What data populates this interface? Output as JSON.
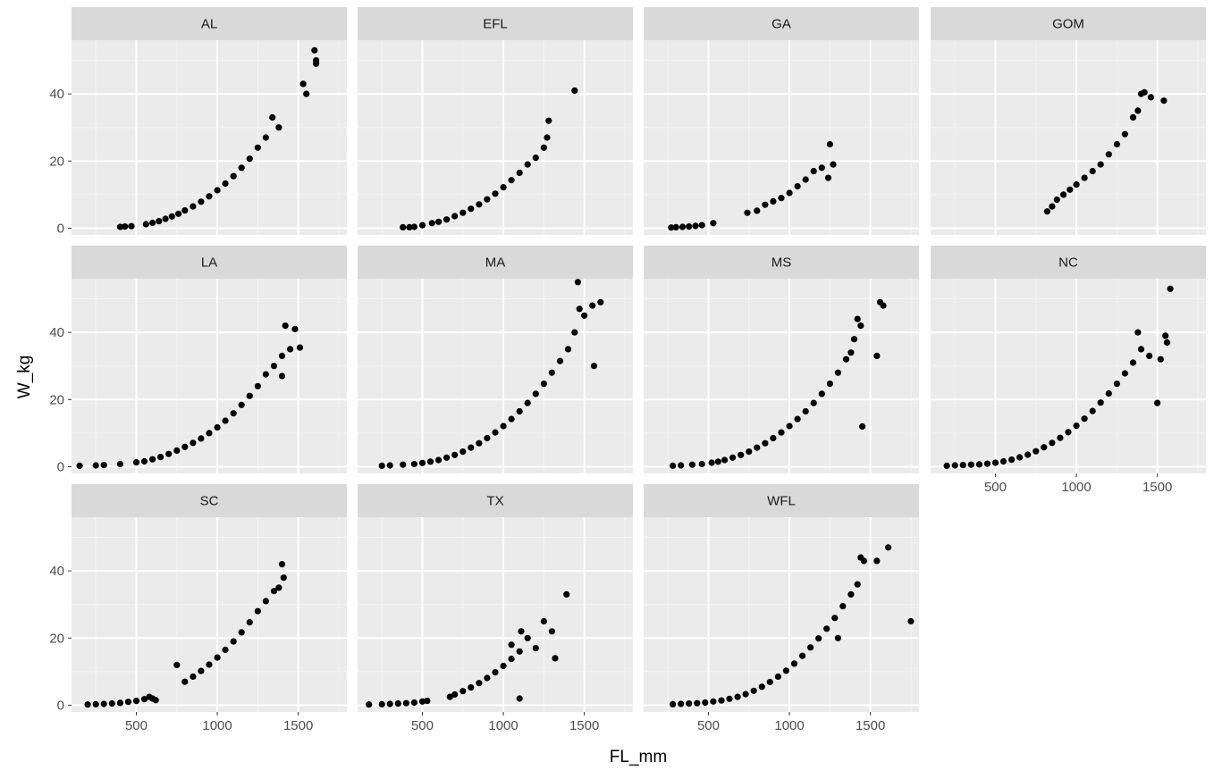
{
  "chart_data": {
    "type": "scatter",
    "facet_type": "facet_wrap",
    "xlabel": "FL_mm",
    "ylabel": "W_kg",
    "xlim": [
      100,
      1800
    ],
    "ylim": [
      -2,
      56
    ],
    "x_ticks": [
      500,
      1000,
      1500
    ],
    "y_ticks": [
      0,
      20,
      40
    ],
    "grid": true,
    "colors": {
      "panel_bg": "#ebebeb",
      "strip_bg": "#d9d9d9",
      "grid_major": "#ffffff",
      "grid_minor": "#f5f5f5",
      "point": "#000000"
    },
    "panels": [
      {
        "name": "AL",
        "points": [
          [
            400,
            0.4
          ],
          [
            430,
            0.5
          ],
          [
            470,
            0.6
          ],
          [
            560,
            1.2
          ],
          [
            600,
            1.6
          ],
          [
            640,
            2.1
          ],
          [
            680,
            2.8
          ],
          [
            720,
            3.5
          ],
          [
            760,
            4.3
          ],
          [
            800,
            5.3
          ],
          [
            850,
            6.5
          ],
          [
            900,
            7.9
          ],
          [
            950,
            9.5
          ],
          [
            1000,
            11.3
          ],
          [
            1050,
            13.3
          ],
          [
            1100,
            15.5
          ],
          [
            1150,
            18.0
          ],
          [
            1200,
            20.7
          ],
          [
            1250,
            24.0
          ],
          [
            1300,
            27.0
          ],
          [
            1340,
            33.0
          ],
          [
            1380,
            30.0
          ],
          [
            1530,
            43.0
          ],
          [
            1550,
            40.0
          ],
          [
            1600,
            53.0
          ],
          [
            1610,
            50.0
          ],
          [
            1610,
            49.0
          ]
        ]
      },
      {
        "name": "EFL",
        "points": [
          [
            380,
            0.3
          ],
          [
            420,
            0.3
          ],
          [
            450,
            0.4
          ],
          [
            500,
            0.9
          ],
          [
            560,
            1.5
          ],
          [
            600,
            1.9
          ],
          [
            650,
            2.6
          ],
          [
            700,
            3.6
          ],
          [
            750,
            4.6
          ],
          [
            800,
            5.8
          ],
          [
            850,
            7.1
          ],
          [
            900,
            8.6
          ],
          [
            950,
            10.3
          ],
          [
            1000,
            12.2
          ],
          [
            1050,
            14.3
          ],
          [
            1100,
            16.5
          ],
          [
            1150,
            19.0
          ],
          [
            1200,
            21.0
          ],
          [
            1250,
            24.0
          ],
          [
            1270,
            27.0
          ],
          [
            1280,
            32.0
          ],
          [
            1440,
            41.0
          ]
        ]
      },
      {
        "name": "GA",
        "points": [
          [
            270,
            0.2
          ],
          [
            300,
            0.3
          ],
          [
            340,
            0.4
          ],
          [
            380,
            0.5
          ],
          [
            420,
            0.7
          ],
          [
            460,
            0.9
          ],
          [
            530,
            1.5
          ],
          [
            740,
            4.6
          ],
          [
            800,
            5.2
          ],
          [
            850,
            7.0
          ],
          [
            900,
            8.0
          ],
          [
            950,
            9.0
          ],
          [
            1000,
            10.5
          ],
          [
            1050,
            12.5
          ],
          [
            1100,
            14.5
          ],
          [
            1150,
            17.0
          ],
          [
            1200,
            18.0
          ],
          [
            1240,
            15.0
          ],
          [
            1250,
            25.0
          ],
          [
            1270,
            19.0
          ]
        ]
      },
      {
        "name": "GOM",
        "points": [
          [
            820,
            5.0
          ],
          [
            850,
            6.5
          ],
          [
            880,
            8.5
          ],
          [
            920,
            10.0
          ],
          [
            960,
            11.5
          ],
          [
            1000,
            13.0
          ],
          [
            1050,
            15.0
          ],
          [
            1100,
            17.0
          ],
          [
            1150,
            19.0
          ],
          [
            1200,
            22.0
          ],
          [
            1250,
            25.0
          ],
          [
            1300,
            28.0
          ],
          [
            1350,
            33.0
          ],
          [
            1380,
            35.0
          ],
          [
            1400,
            40.0
          ],
          [
            1420,
            40.5
          ],
          [
            1460,
            39.0
          ],
          [
            1540,
            38.0
          ]
        ]
      },
      {
        "name": "LA",
        "points": [
          [
            150,
            0.3
          ],
          [
            250,
            0.4
          ],
          [
            300,
            0.5
          ],
          [
            400,
            0.8
          ],
          [
            500,
            1.3
          ],
          [
            550,
            1.6
          ],
          [
            600,
            2.2
          ],
          [
            650,
            2.9
          ],
          [
            700,
            3.8
          ],
          [
            750,
            4.8
          ],
          [
            800,
            5.9
          ],
          [
            850,
            7.1
          ],
          [
            900,
            8.4
          ],
          [
            950,
            10.0
          ],
          [
            1000,
            11.7
          ],
          [
            1050,
            13.7
          ],
          [
            1100,
            15.9
          ],
          [
            1150,
            18.4
          ],
          [
            1200,
            21.1
          ],
          [
            1250,
            24.0
          ],
          [
            1300,
            27.5
          ],
          [
            1350,
            30.0
          ],
          [
            1400,
            33.0
          ],
          [
            1420,
            42.0
          ],
          [
            1450,
            35.0
          ],
          [
            1480,
            41.0
          ],
          [
            1510,
            35.5
          ],
          [
            1400,
            27.0
          ]
        ]
      },
      {
        "name": "MA",
        "points": [
          [
            250,
            0.3
          ],
          [
            300,
            0.4
          ],
          [
            380,
            0.6
          ],
          [
            450,
            0.8
          ],
          [
            500,
            1.1
          ],
          [
            550,
            1.5
          ],
          [
            600,
            2.0
          ],
          [
            650,
            2.7
          ],
          [
            700,
            3.5
          ],
          [
            750,
            4.5
          ],
          [
            800,
            5.7
          ],
          [
            850,
            7.0
          ],
          [
            900,
            8.5
          ],
          [
            950,
            10.2
          ],
          [
            1000,
            12.1
          ],
          [
            1050,
            14.2
          ],
          [
            1100,
            16.5
          ],
          [
            1150,
            19.0
          ],
          [
            1200,
            21.7
          ],
          [
            1250,
            24.7
          ],
          [
            1300,
            28.0
          ],
          [
            1350,
            31.5
          ],
          [
            1400,
            35.0
          ],
          [
            1440,
            40.0
          ],
          [
            1460,
            55.0
          ],
          [
            1500,
            45.0
          ],
          [
            1550,
            48.0
          ],
          [
            1600,
            49.0
          ],
          [
            1560,
            30.0
          ],
          [
            1470,
            47.0
          ]
        ]
      },
      {
        "name": "MS",
        "points": [
          [
            280,
            0.3
          ],
          [
            330,
            0.4
          ],
          [
            400,
            0.6
          ],
          [
            460,
            0.8
          ],
          [
            520,
            1.2
          ],
          [
            560,
            1.5
          ],
          [
            600,
            2.0
          ],
          [
            650,
            2.7
          ],
          [
            700,
            3.5
          ],
          [
            750,
            4.5
          ],
          [
            800,
            5.7
          ],
          [
            850,
            7.0
          ],
          [
            900,
            8.5
          ],
          [
            950,
            10.2
          ],
          [
            1000,
            12.1
          ],
          [
            1050,
            14.2
          ],
          [
            1100,
            16.5
          ],
          [
            1150,
            19.0
          ],
          [
            1200,
            21.7
          ],
          [
            1250,
            24.7
          ],
          [
            1300,
            28.0
          ],
          [
            1350,
            32.0
          ],
          [
            1380,
            34.0
          ],
          [
            1400,
            38.0
          ],
          [
            1420,
            44.0
          ],
          [
            1440,
            42.0
          ],
          [
            1450,
            12.0
          ],
          [
            1540,
            33.0
          ],
          [
            1560,
            49.0
          ],
          [
            1580,
            48.0
          ]
        ]
      },
      {
        "name": "NC",
        "points": [
          [
            200,
            0.3
          ],
          [
            250,
            0.4
          ],
          [
            300,
            0.5
          ],
          [
            350,
            0.6
          ],
          [
            400,
            0.7
          ],
          [
            450,
            0.9
          ],
          [
            500,
            1.2
          ],
          [
            550,
            1.6
          ],
          [
            600,
            2.1
          ],
          [
            650,
            2.8
          ],
          [
            700,
            3.6
          ],
          [
            750,
            4.6
          ],
          [
            800,
            5.8
          ],
          [
            850,
            7.1
          ],
          [
            900,
            8.6
          ],
          [
            950,
            10.3
          ],
          [
            1000,
            12.2
          ],
          [
            1050,
            14.3
          ],
          [
            1100,
            16.6
          ],
          [
            1150,
            19.1
          ],
          [
            1200,
            21.8
          ],
          [
            1250,
            24.7
          ],
          [
            1300,
            27.8
          ],
          [
            1350,
            31.0
          ],
          [
            1380,
            40.0
          ],
          [
            1400,
            35.0
          ],
          [
            1450,
            33.0
          ],
          [
            1500,
            19.0
          ],
          [
            1520,
            32.0
          ],
          [
            1550,
            39.0
          ],
          [
            1560,
            37.0
          ],
          [
            1580,
            53.0
          ]
        ]
      },
      {
        "name": "SC",
        "points": [
          [
            200,
            0.2
          ],
          [
            250,
            0.3
          ],
          [
            300,
            0.4
          ],
          [
            350,
            0.5
          ],
          [
            400,
            0.7
          ],
          [
            450,
            1.0
          ],
          [
            500,
            1.3
          ],
          [
            550,
            1.8
          ],
          [
            580,
            2.5
          ],
          [
            600,
            2.0
          ],
          [
            620,
            1.5
          ],
          [
            750,
            12.0
          ],
          [
            800,
            7.0
          ],
          [
            850,
            8.5
          ],
          [
            900,
            10.2
          ],
          [
            950,
            12.1
          ],
          [
            1000,
            14.2
          ],
          [
            1050,
            16.5
          ],
          [
            1100,
            19.0
          ],
          [
            1150,
            21.7
          ],
          [
            1200,
            24.7
          ],
          [
            1250,
            28.0
          ],
          [
            1300,
            31.0
          ],
          [
            1350,
            34.0
          ],
          [
            1380,
            35.0
          ],
          [
            1400,
            42.0
          ],
          [
            1410,
            38.0
          ]
        ]
      },
      {
        "name": "TX",
        "points": [
          [
            170,
            0.2
          ],
          [
            250,
            0.3
          ],
          [
            300,
            0.4
          ],
          [
            350,
            0.5
          ],
          [
            400,
            0.6
          ],
          [
            450,
            0.8
          ],
          [
            500,
            1.1
          ],
          [
            530,
            1.3
          ],
          [
            670,
            2.5
          ],
          [
            700,
            3.2
          ],
          [
            750,
            4.2
          ],
          [
            800,
            5.3
          ],
          [
            850,
            6.6
          ],
          [
            900,
            8.1
          ],
          [
            950,
            9.8
          ],
          [
            1000,
            11.7
          ],
          [
            1050,
            13.8
          ],
          [
            1100,
            16.0
          ],
          [
            1110,
            22.0
          ],
          [
            1150,
            20.0
          ],
          [
            1200,
            17.0
          ],
          [
            1250,
            25.0
          ],
          [
            1300,
            22.0
          ],
          [
            1320,
            14.0
          ],
          [
            1390,
            33.0
          ],
          [
            1100,
            2.0
          ],
          [
            1050,
            18.0
          ]
        ]
      },
      {
        "name": "WFL",
        "points": [
          [
            280,
            0.3
          ],
          [
            330,
            0.4
          ],
          [
            380,
            0.5
          ],
          [
            430,
            0.6
          ],
          [
            480,
            0.8
          ],
          [
            530,
            1.1
          ],
          [
            580,
            1.4
          ],
          [
            630,
            1.9
          ],
          [
            680,
            2.5
          ],
          [
            730,
            3.3
          ],
          [
            780,
            4.3
          ],
          [
            830,
            5.5
          ],
          [
            880,
            6.9
          ],
          [
            930,
            8.5
          ],
          [
            980,
            10.3
          ],
          [
            1030,
            12.4
          ],
          [
            1080,
            14.7
          ],
          [
            1130,
            17.2
          ],
          [
            1180,
            19.9
          ],
          [
            1230,
            22.8
          ],
          [
            1280,
            26.0
          ],
          [
            1330,
            29.5
          ],
          [
            1380,
            33.0
          ],
          [
            1420,
            36.0
          ],
          [
            1440,
            44.0
          ],
          [
            1460,
            43.0
          ],
          [
            1540,
            43.0
          ],
          [
            1610,
            47.0
          ],
          [
            1750,
            25.0
          ],
          [
            1300,
            20.0
          ]
        ]
      }
    ]
  }
}
